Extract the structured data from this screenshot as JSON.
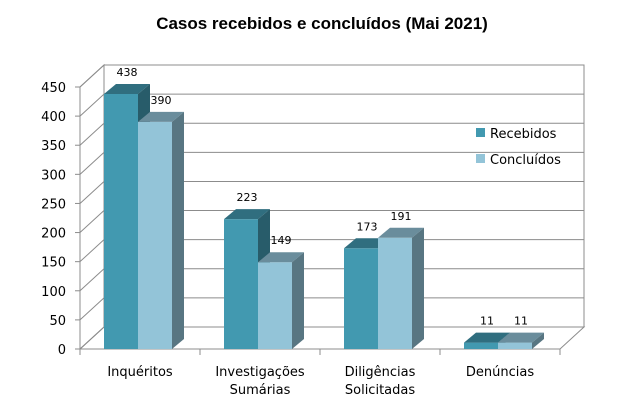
{
  "chart_data": {
    "type": "bar",
    "title": "Casos recebidos e concluídos (Mai 2021)",
    "categories": [
      [
        "Inquéritos"
      ],
      [
        "Investigações",
        "Sumárias"
      ],
      [
        "Diligências",
        "Solicitadas"
      ],
      [
        "Denúncias"
      ]
    ],
    "series": [
      {
        "name": "Recebidos",
        "values": [
          438,
          223,
          173,
          11
        ],
        "color": "#4299b0"
      },
      {
        "name": "Concluídos",
        "values": [
          390,
          149,
          191,
          11
        ],
        "color": "#93c4d8"
      }
    ],
    "ylim": [
      0,
      450
    ],
    "yticks": [
      0,
      50,
      100,
      150,
      200,
      250,
      300,
      350,
      400,
      450
    ],
    "grid": true,
    "legend_position": "right",
    "style": "3d-clustered-column"
  }
}
